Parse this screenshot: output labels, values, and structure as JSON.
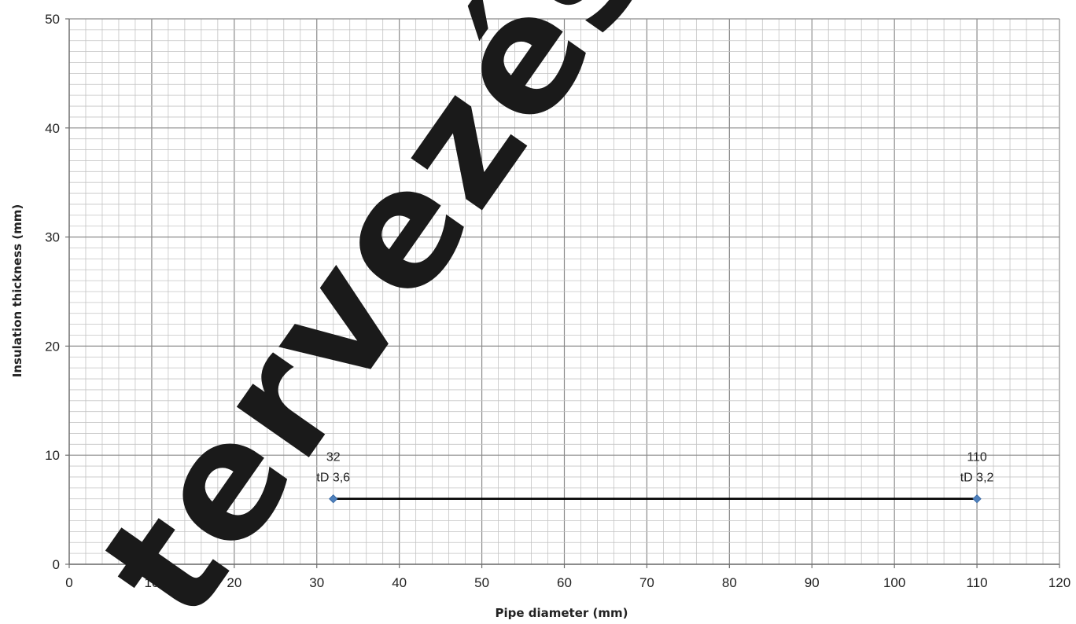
{
  "chart_data": {
    "type": "line",
    "xlabel": "Pipe diameter (mm)",
    "ylabel": "Insulation thickness (mm)",
    "xlim": [
      0,
      120
    ],
    "ylim": [
      0,
      50
    ],
    "x_ticks": [
      0,
      10,
      20,
      30,
      40,
      50,
      60,
      70,
      80,
      90,
      100,
      110,
      120
    ],
    "y_ticks": [
      0,
      10,
      20,
      30,
      40,
      50
    ],
    "grid": "major and minor",
    "series": [
      {
        "color": "#000000",
        "marker_color": "#4f81bd",
        "points": [
          {
            "x": 32,
            "y": 6,
            "label_top": "32",
            "label_bottom": "tD 3,6"
          },
          {
            "x": 110,
            "y": 6,
            "label_top": "110",
            "label_bottom": "tD  3,2"
          }
        ]
      }
    ]
  },
  "watermark": {
    "text": "tervezés"
  }
}
